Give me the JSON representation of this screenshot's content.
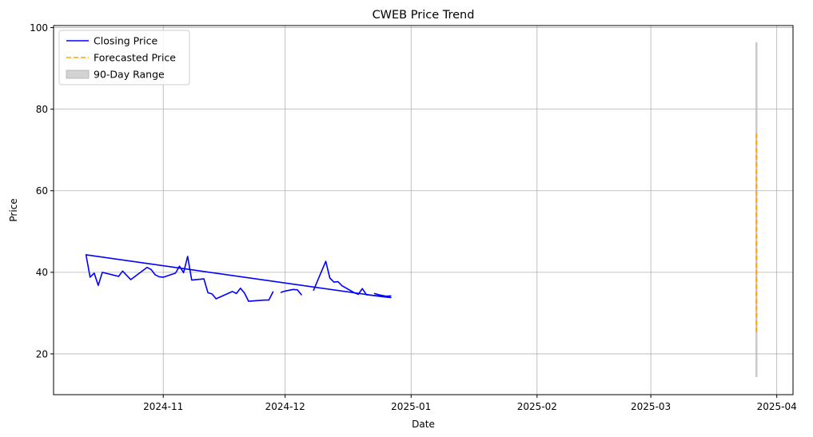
{
  "chart_data": {
    "type": "line",
    "title": "CWEB Price Trend",
    "xlabel": "Date",
    "ylabel": "Price",
    "xlim": [
      "2024-10-05",
      "2025-04-05"
    ],
    "ylim": [
      10,
      100.5
    ],
    "x_ticks": [
      "2024-11-01",
      "2024-12-01",
      "2025-01-01",
      "2025-02-01",
      "2025-03-01",
      "2025-04-01"
    ],
    "x_tick_labels": [
      "2024-11",
      "2024-12",
      "2025-01",
      "2025-02",
      "2025-03",
      "2025-04"
    ],
    "y_ticks": [
      20,
      40,
      60,
      80,
      100
    ],
    "y_tick_labels": [
      "20",
      "40",
      "60",
      "80",
      "100"
    ],
    "grid": true,
    "legend_position": "top-left",
    "series": [
      {
        "name": "Closing Price",
        "style": "solid",
        "color": "#0000ff",
        "segments": [
          [
            [
              "2024-10-13",
              44.2
            ],
            [
              "2024-10-14",
              38.8
            ],
            [
              "2024-10-15",
              39.8
            ],
            [
              "2024-10-16",
              36.8
            ],
            [
              "2024-10-17",
              40.0
            ],
            [
              "2024-10-21",
              39.0
            ],
            [
              "2024-10-22",
              40.3
            ],
            [
              "2024-10-24",
              38.2
            ],
            [
              "2024-10-28",
              41.2
            ],
            [
              "2024-10-29",
              40.7
            ],
            [
              "2024-10-30",
              39.4
            ],
            [
              "2024-10-31",
              38.9
            ],
            [
              "2024-11-01",
              38.8
            ],
            [
              "2024-11-04",
              39.8
            ],
            [
              "2024-11-05",
              41.5
            ],
            [
              "2024-11-06",
              39.9
            ],
            [
              "2024-11-07",
              43.9
            ],
            [
              "2024-11-08",
              38.1
            ],
            [
              "2024-11-11",
              38.4
            ],
            [
              "2024-11-12",
              35.0
            ],
            [
              "2024-11-13",
              34.7
            ],
            [
              "2024-11-14",
              33.5
            ],
            [
              "2024-11-18",
              35.3
            ],
            [
              "2024-11-19",
              34.8
            ],
            [
              "2024-11-20",
              36.1
            ],
            [
              "2024-11-21",
              34.9
            ],
            [
              "2024-11-22",
              32.9
            ],
            [
              "2024-11-26",
              33.2
            ],
            [
              "2024-11-27",
              33.2
            ],
            [
              "2024-11-28",
              35.2
            ]
          ],
          [
            [
              "2024-11-30",
              35.1
            ],
            [
              "2024-12-01",
              35.4
            ],
            [
              "2024-12-03",
              35.8
            ],
            [
              "2024-12-04",
              35.7
            ],
            [
              "2024-12-05",
              34.5
            ]
          ],
          [
            [
              "2024-12-08",
              35.6
            ],
            [
              "2024-12-09",
              38.0
            ],
            [
              "2024-12-11",
              42.7
            ],
            [
              "2024-12-12",
              38.6
            ],
            [
              "2024-12-13",
              37.6
            ],
            [
              "2024-12-14",
              37.7
            ],
            [
              "2024-12-15",
              36.7
            ],
            [
              "2024-12-18",
              35.0
            ],
            [
              "2024-12-19",
              34.6
            ],
            [
              "2024-12-20",
              36.0
            ],
            [
              "2024-12-21",
              34.5
            ],
            [
              "2024-12-23",
              34.3
            ],
            [
              "2024-12-25",
              34.1
            ],
            [
              "2024-12-27",
              34.2
            ]
          ],
          [
            [
              "2024-12-23",
              34.8
            ],
            [
              "2024-12-24",
              34.5
            ],
            [
              "2024-12-26",
              34.1
            ],
            [
              "2024-12-27",
              33.8
            ],
            [
              "2024-12-25",
              34.0
            ],
            [
              "2024-10-13",
              44.3
            ]
          ]
        ]
      },
      {
        "name": "Forecasted Price",
        "style": "dashed",
        "color": "#ffa500",
        "segments": [
          [
            [
              "2025-03-27",
              25.3
            ],
            [
              "2025-03-27",
              74.0
            ]
          ]
        ]
      }
    ],
    "bands": [
      {
        "name": "90-Day Range",
        "color": "#bbbbbb",
        "x": "2025-03-27",
        "low": 14.3,
        "high": 96.4
      }
    ]
  }
}
